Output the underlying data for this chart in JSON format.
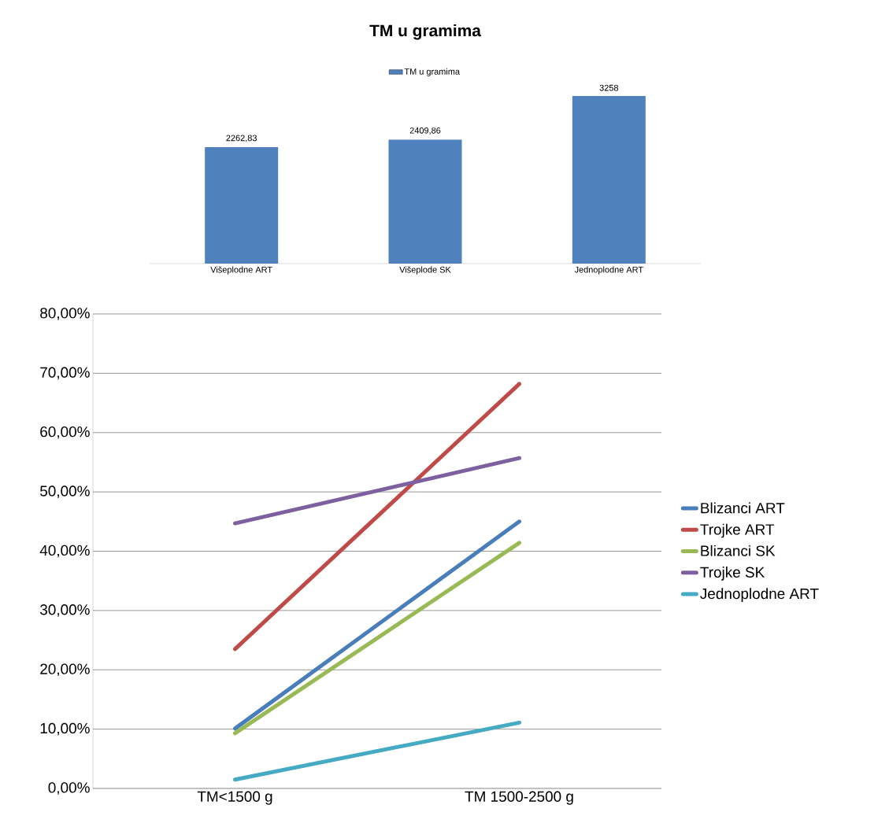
{
  "chart_data": [
    {
      "type": "bar",
      "title": "TM u gramima",
      "categories": [
        "Višeplodne ART",
        "Višeplode SK",
        "Jednoplodne ART"
      ],
      "series": [
        {
          "name": "TM u gramima",
          "color": "#4f81bd",
          "values": [
            2262.83,
            2409.86,
            3258
          ],
          "value_labels": [
            "2262,83",
            "2409,86",
            "3258"
          ]
        }
      ],
      "tick_labels": "x",
      "legend": "top",
      "grid": false
    },
    {
      "type": "line",
      "categories": [
        "TM<1500 g",
        "TM 1500-2500 g"
      ],
      "series": [
        {
          "name": "Blizanci ART",
          "color": "#4a7ebb",
          "values": [
            10.1,
            45.0
          ]
        },
        {
          "name": "Trojke ART",
          "color": "#be4b48",
          "values": [
            23.5,
            68.2
          ]
        },
        {
          "name": "Blizanci SK",
          "color": "#98b954",
          "values": [
            9.3,
            41.4
          ]
        },
        {
          "name": "Trojke SK",
          "color": "#7d60a0",
          "values": [
            44.7,
            55.7
          ]
        },
        {
          "name": "Jednoplodne ART",
          "color": "#46aac5",
          "values": [
            1.5,
            11.1
          ]
        }
      ],
      "ylim": [
        0,
        80
      ],
      "yticks": [
        {
          "value": 0,
          "label": "0,00%"
        },
        {
          "value": 10,
          "label": "10,00%"
        },
        {
          "value": 20,
          "label": "20,00%"
        },
        {
          "value": 30,
          "label": "30,00%"
        },
        {
          "value": 40,
          "label": "40,00%"
        },
        {
          "value": 50,
          "label": "50,00%"
        },
        {
          "value": 60,
          "label": "60,00%"
        },
        {
          "value": 70,
          "label": "70,00%"
        },
        {
          "value": 80,
          "label": "80,00%"
        }
      ],
      "grid": "y",
      "legend": "right",
      "marker": "none",
      "line_style": "solid"
    }
  ]
}
